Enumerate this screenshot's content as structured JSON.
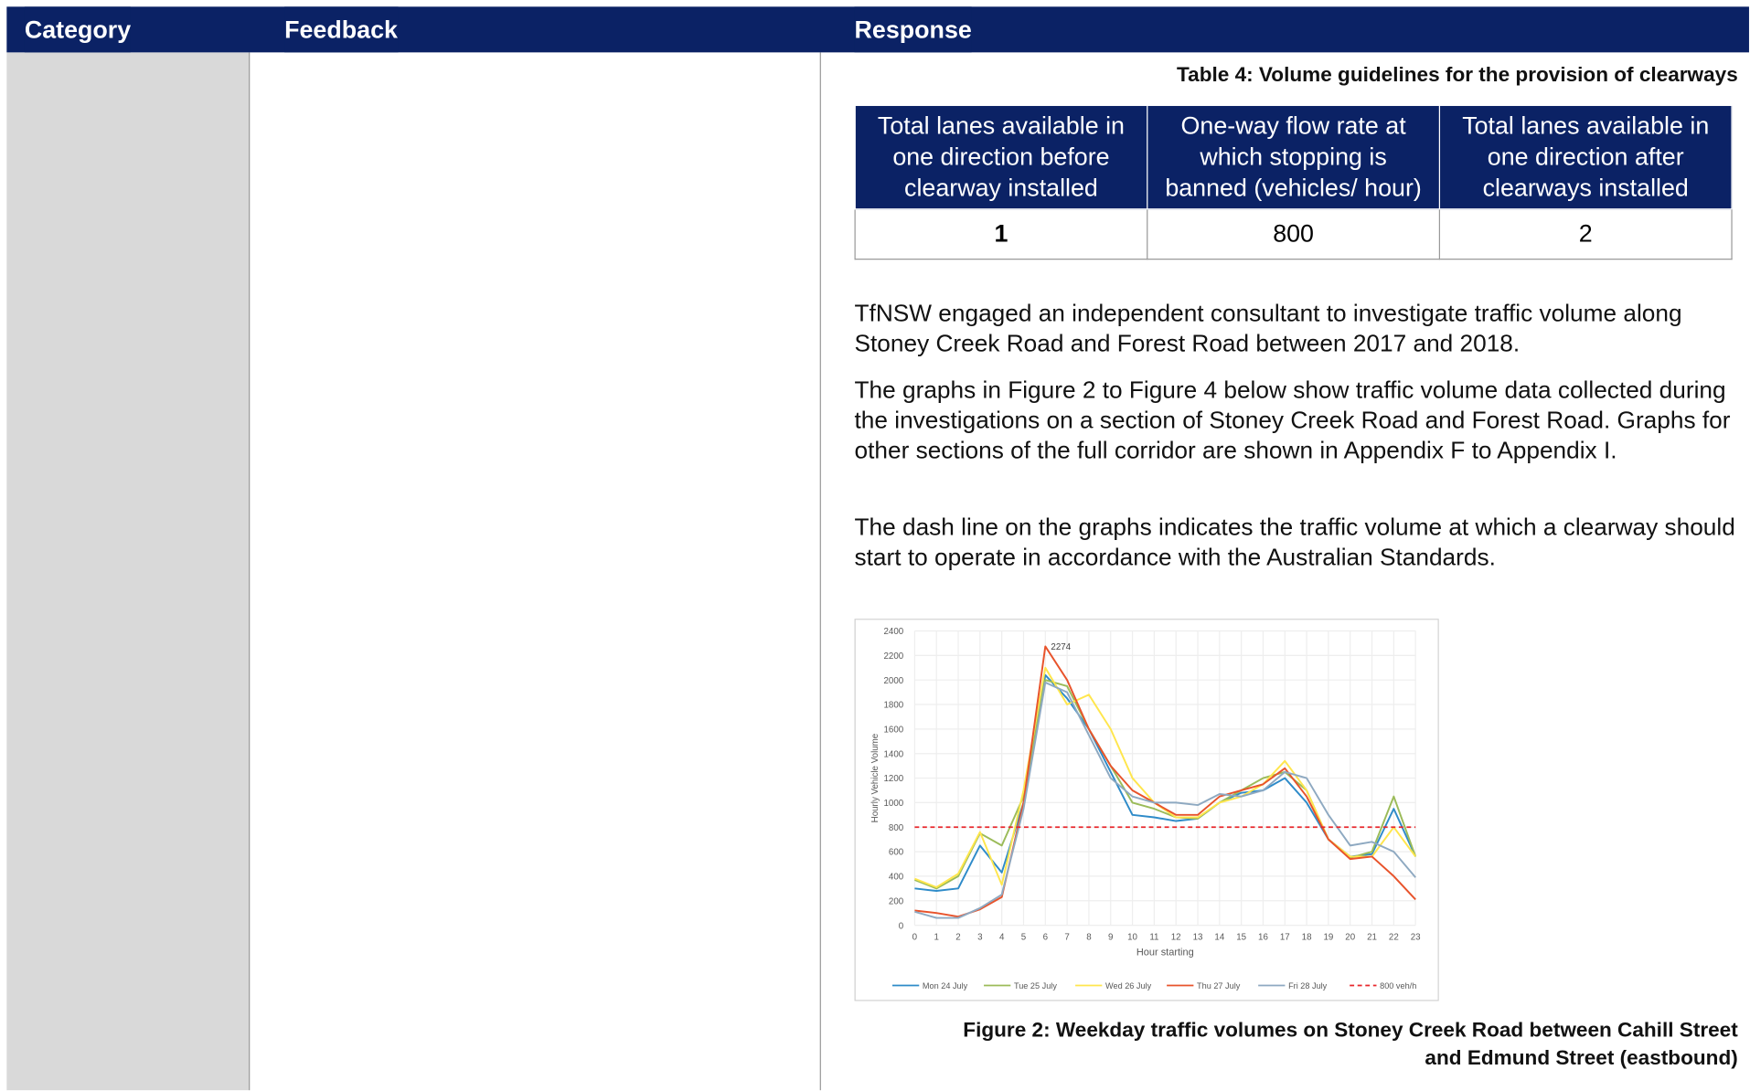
{
  "header": {
    "columns": [
      "Category",
      "Feedback",
      "Response"
    ]
  },
  "response": {
    "table_caption": "Table 4: Volume guidelines for the provision of clearways",
    "table": {
      "headers": [
        "Total lanes available in one direction before clearway installed",
        "One-way flow rate at which stopping is banned (vehicles/ hour)",
        "Total lanes available in one direction after clearways installed"
      ],
      "rows": [
        [
          1,
          800,
          2
        ]
      ]
    },
    "paragraphs": [
      "TfNSW engaged an independent consultant to investigate traffic volume along Stoney Creek Road and Forest Road between 2017 and 2018.",
      "The graphs in Figure 2 to Figure 4 below show traffic volume data collected during the investigations on a section of Stoney Creek Road and Forest Road. Graphs for other sections of the full corridor are shown in Appendix F to Appendix I.",
      "The dash line on the graphs indicates the traffic volume at which a clearway should start to operate in accordance with the Australian Standards."
    ],
    "figure_caption": "Figure 2: Weekday traffic volumes on Stoney Creek Road between Cahill Street and Edmund Street (eastbound)"
  },
  "figure": {
    "chart": {
      "type": "line",
      "x_label": "Hour starting",
      "y_label": "Hourly Vehicle Volume",
      "x": [
        0,
        1,
        2,
        3,
        4,
        5,
        6,
        7,
        8,
        9,
        10,
        11,
        12,
        13,
        14,
        15,
        16,
        17,
        18,
        19,
        20,
        21,
        22,
        23
      ],
      "xlim": [
        0,
        23
      ],
      "xticks": [
        0,
        1,
        2,
        3,
        4,
        5,
        6,
        7,
        8,
        9,
        10,
        11,
        12,
        13,
        14,
        15,
        16,
        17,
        18,
        19,
        20,
        21,
        22,
        23
      ],
      "ylim": [
        0,
        2400
      ],
      "yticks": [
        0,
        200,
        400,
        600,
        800,
        1000,
        1200,
        1400,
        1600,
        1800,
        2000,
        2200,
        2400
      ],
      "grid": true,
      "labeled_point": {
        "series": 3,
        "index": 6
      },
      "series": [
        {
          "name": "Mon 24 July",
          "color": "#2e8bc9",
          "values": [
            300,
            280,
            300,
            650,
            430,
            1000,
            2040,
            1850,
            1600,
            1250,
            900,
            880,
            850,
            870,
            1000,
            1080,
            1100,
            1200,
            1000,
            700,
            560,
            580,
            950,
            560
          ]
        },
        {
          "name": "Tue 25 July",
          "color": "#9bbb59",
          "values": [
            370,
            300,
            400,
            750,
            650,
            1050,
            2000,
            1950,
            1600,
            1300,
            1000,
            950,
            880,
            870,
            1000,
            1100,
            1200,
            1250,
            1100,
            700,
            550,
            600,
            1050,
            560
          ]
        },
        {
          "name": "Wed 26 July",
          "color": "#ffe64d",
          "values": [
            380,
            310,
            420,
            760,
            330,
            1100,
            2100,
            1800,
            1880,
            1600,
            1200,
            1000,
            880,
            880,
            1000,
            1050,
            1150,
            1340,
            1100,
            700,
            560,
            560,
            800,
            560
          ]
        },
        {
          "name": "Thu 27 July",
          "color": "#e8532b",
          "values": [
            120,
            100,
            70,
            130,
            230,
            1000,
            2274,
            2000,
            1600,
            1300,
            1100,
            1000,
            900,
            900,
            1050,
            1100,
            1150,
            1280,
            1050,
            700,
            540,
            560,
            400,
            210
          ]
        },
        {
          "name": "Fri 28 July",
          "color": "#8ea9c1",
          "values": [
            110,
            60,
            60,
            140,
            250,
            950,
            1980,
            1900,
            1550,
            1200,
            1050,
            1000,
            1000,
            980,
            1070,
            1050,
            1100,
            1250,
            1200,
            900,
            650,
            680,
            600,
            390
          ]
        },
        {
          "name": "800 veh/h",
          "color": "#e8262b",
          "dash": true,
          "values": [
            800,
            800,
            800,
            800,
            800,
            800,
            800,
            800,
            800,
            800,
            800,
            800,
            800,
            800,
            800,
            800,
            800,
            800,
            800,
            800,
            800,
            800,
            800,
            800
          ]
        }
      ]
    }
  }
}
